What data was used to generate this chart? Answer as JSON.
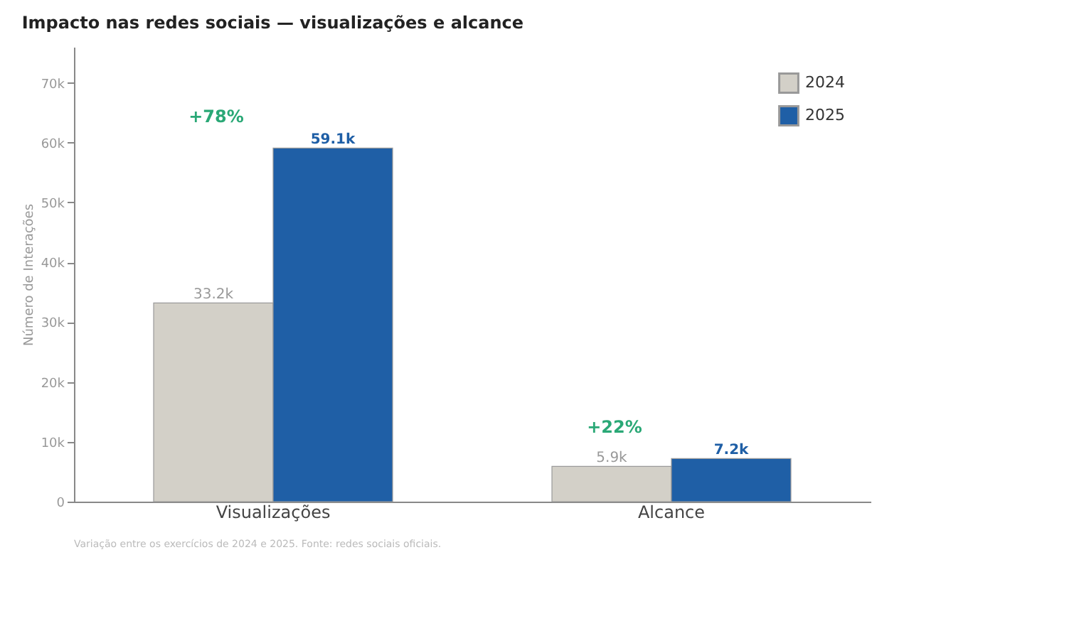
{
  "chart_data": {
    "type": "bar",
    "title": "Impacto nas redes sociais — visualizações e alcance",
    "categories": [
      "Visualizações",
      "Alcance"
    ],
    "series": [
      {
        "name": "2024",
        "color": "#d3d0c8",
        "values": [
          33200,
          5900
        ],
        "value_labels": [
          "33.2k",
          "5.9k"
        ]
      },
      {
        "name": "2025",
        "color": "#1f5fa6",
        "values": [
          59100,
          7200
        ],
        "value_labels": [
          "59.1k",
          "7.2k"
        ]
      }
    ],
    "ylabel": "Número de Interações",
    "ylim": [
      0,
      76000
    ],
    "yticks": [
      {
        "value": 0,
        "label": "0"
      },
      {
        "value": 10000,
        "label": "10k"
      },
      {
        "value": 20000,
        "label": "20k"
      },
      {
        "value": 30000,
        "label": "30k"
      },
      {
        "value": 40000,
        "label": "40k"
      },
      {
        "value": 50000,
        "label": "50k"
      },
      {
        "value": 60000,
        "label": "60k"
      },
      {
        "value": 70000,
        "label": "70k"
      }
    ],
    "annotations": [
      "+78%",
      "+22%",
      "Variação entre os exercícios de 2024 e 2025. Fonte: redes sociais oficiais."
    ],
    "legend": "top right",
    "grid": false
  }
}
